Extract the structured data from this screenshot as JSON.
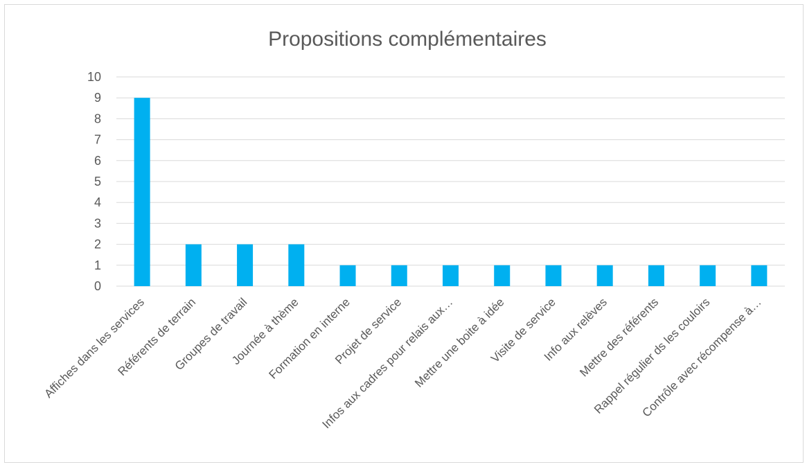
{
  "chart_data": {
    "type": "bar",
    "title": "Propositions complémentaires",
    "categories": [
      "Affiches dans les services",
      "Référents de terrain",
      "Groupes de travail",
      "Journée à thème",
      "Formation en interne",
      "Projet de service",
      "Infos aux cadres pour relais aux…",
      "Mettre une boite à idée",
      "Visite de service",
      "Info aux relèves",
      "Mettre des référents",
      "Rappel régulier ds les couloirs",
      "Contrôle avec récompense à…"
    ],
    "values": [
      9,
      2,
      2,
      2,
      1,
      1,
      1,
      1,
      1,
      1,
      1,
      1,
      1
    ],
    "y_ticks": [
      "0",
      "1",
      "2",
      "3",
      "4",
      "5",
      "6",
      "7",
      "8",
      "9",
      "10"
    ],
    "ylim": [
      0,
      10
    ],
    "xlabel": "",
    "ylabel": "",
    "grid": true,
    "legend": "none",
    "colors": {
      "bar": "#00b0f0",
      "grid": "#d9d9d9",
      "text": "#595959",
      "border": "#d9d9d9"
    }
  }
}
